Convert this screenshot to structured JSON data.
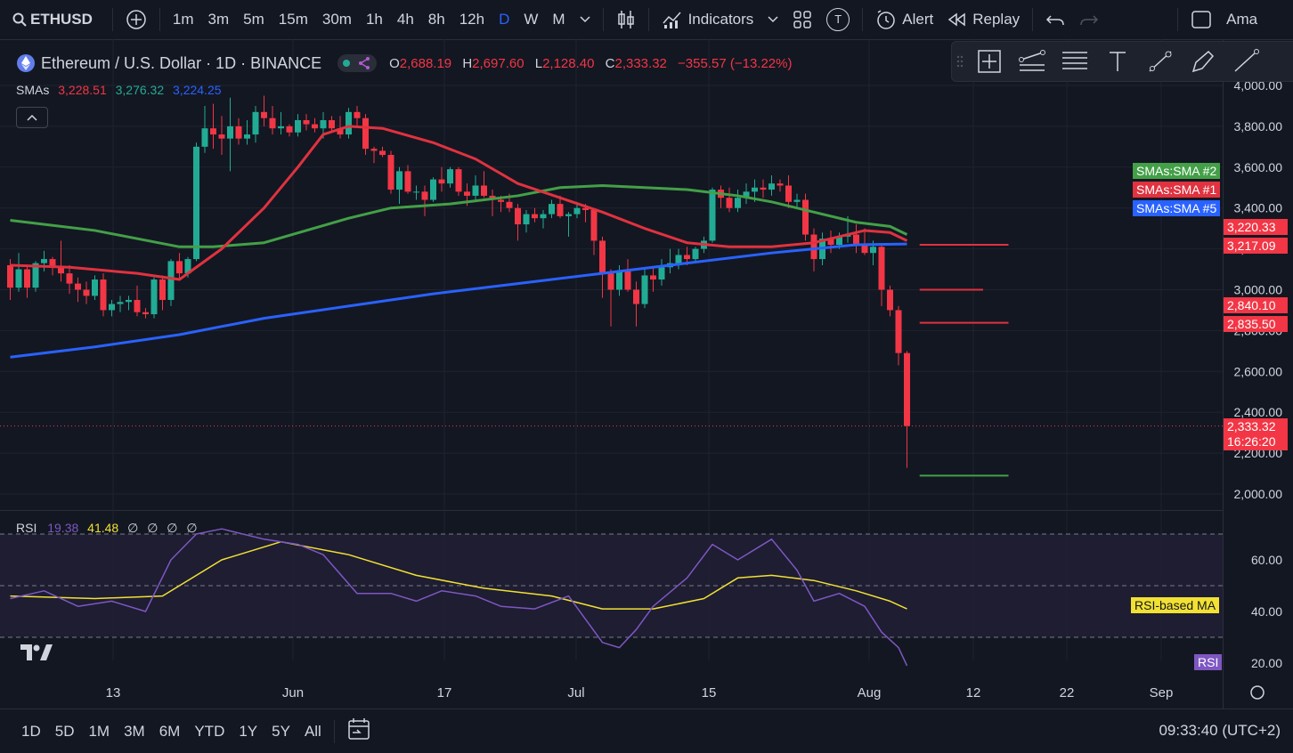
{
  "toolbar": {
    "symbol": "ETHUSD",
    "intervals": [
      "1m",
      "3m",
      "5m",
      "15m",
      "30m",
      "1h",
      "4h",
      "8h",
      "12h",
      "D",
      "W",
      "M"
    ],
    "active_interval": "D",
    "indicators_label": "Indicators",
    "alert_label": "Alert",
    "replay_label": "Replay",
    "t_badge": "T",
    "cut_label": "Ama"
  },
  "legend": {
    "title": "Ethereum / U.S. Dollar · 1D · BINANCE",
    "o_label": "O",
    "o_value": "2,688.19",
    "h_label": "H",
    "h_value": "2,697.60",
    "l_label": "L",
    "l_value": "2,128.40",
    "c_label": "C",
    "c_value": "2,333.32",
    "change": "−355.57 (−13.22%)",
    "smas_label": "SMAs",
    "sma1_value": "3,228.51",
    "sma2_value": "3,276.32",
    "sma5_value": "3,224.25"
  },
  "rsi_legend": {
    "label": "RSI",
    "rsi_value": "19.38",
    "ma_value": "41.48",
    "empty1": "∅",
    "empty2": "∅",
    "empty3": "∅",
    "empty4": "∅"
  },
  "badges": {
    "sma2": "SMAs:SMA #2",
    "sma1": "SMAs:SMA #1",
    "sma5": "SMAs:SMA #5",
    "p1": "3,220.33",
    "p2": "3,217.09",
    "p3": "2,840.10",
    "p4": "2,835.50",
    "last_price": "2,333.32",
    "countdown": "16:26:20",
    "rsi_ma": "RSI-based MA",
    "rsi": "RSI"
  },
  "bottom": {
    "ranges": [
      "1D",
      "5D",
      "1M",
      "3M",
      "6M",
      "YTD",
      "1Y",
      "5Y",
      "All"
    ],
    "clock": "09:33:40 (UTC+2)"
  },
  "colors": {
    "up": "#22ab94",
    "down": "#f23645",
    "sma1": "#e0323f",
    "sma2": "#43a047",
    "sma5": "#2962ff",
    "rsi": "#7e57c2",
    "rsi_ma": "#f2e132"
  },
  "chart_data": {
    "type": "candlestick",
    "price_axis_ticks": [
      "4,000.00",
      "3,800.00",
      "3,600.00",
      "3,400.00",
      "3,200.00",
      "3,000.00",
      "2,800.00",
      "2,600.00",
      "2,400.00",
      "2,200.00",
      "2,000.00"
    ],
    "price_axis_values": [
      4000,
      3800,
      3600,
      3400,
      3200,
      3000,
      2800,
      2600,
      2400,
      2200,
      2000
    ],
    "rsi_axis_ticks": [
      "60.00",
      "40.00",
      "20.00"
    ],
    "rsi_axis_values": [
      60,
      40,
      20
    ],
    "time_labels": [
      "13",
      "Jun",
      "17",
      "Jul",
      "15",
      "Aug",
      "12",
      "22",
      "Sep"
    ],
    "candles": [
      [
        3120,
        3150,
        2950,
        3010
      ],
      [
        3010,
        3180,
        2990,
        3100
      ],
      [
        3100,
        3120,
        2960,
        3010
      ],
      [
        3010,
        3140,
        2990,
        3130
      ],
      [
        3130,
        3190,
        3090,
        3150
      ],
      [
        3150,
        3160,
        3070,
        3110
      ],
      [
        3110,
        3240,
        3040,
        3080
      ],
      [
        3080,
        3120,
        2980,
        3030
      ],
      [
        3030,
        3060,
        2940,
        3000
      ],
      [
        3000,
        3040,
        2930,
        2970
      ],
      [
        2970,
        3070,
        2950,
        3050
      ],
      [
        3050,
        3080,
        2870,
        2900
      ],
      [
        2900,
        2950,
        2870,
        2930
      ],
      [
        2930,
        2970,
        2890,
        2940
      ],
      [
        2940,
        2970,
        2900,
        2950
      ],
      [
        2950,
        3020,
        2870,
        2890
      ],
      [
        2890,
        2910,
        2860,
        2880
      ],
      [
        2880,
        3060,
        2860,
        3050
      ],
      [
        3050,
        3070,
        2900,
        2950
      ],
      [
        2950,
        3150,
        2920,
        3140
      ],
      [
        3140,
        3180,
        3050,
        3080
      ],
      [
        3080,
        3160,
        3060,
        3150
      ],
      [
        3150,
        3720,
        3140,
        3700
      ],
      [
        3700,
        3900,
        3670,
        3790
      ],
      [
        3790,
        3910,
        3690,
        3760
      ],
      [
        3760,
        3850,
        3660,
        3740
      ],
      [
        3740,
        3940,
        3580,
        3800
      ],
      [
        3800,
        3840,
        3710,
        3740
      ],
      [
        3740,
        3830,
        3710,
        3760
      ],
      [
        3760,
        3900,
        3720,
        3870
      ],
      [
        3870,
        3950,
        3800,
        3840
      ],
      [
        3840,
        3900,
        3760,
        3790
      ],
      [
        3790,
        3870,
        3760,
        3800
      ],
      [
        3800,
        3810,
        3750,
        3770
      ],
      [
        3770,
        3860,
        3750,
        3830
      ],
      [
        3830,
        3860,
        3780,
        3810
      ],
      [
        3810,
        3840,
        3770,
        3790
      ],
      [
        3790,
        3870,
        3740,
        3830
      ],
      [
        3830,
        3850,
        3770,
        3790
      ],
      [
        3790,
        3850,
        3740,
        3760
      ],
      [
        3760,
        3890,
        3740,
        3870
      ],
      [
        3870,
        3900,
        3800,
        3840
      ],
      [
        3840,
        3860,
        3660,
        3690
      ],
      [
        3690,
        3700,
        3620,
        3680
      ],
      [
        3680,
        3700,
        3650,
        3660
      ],
      [
        3660,
        3680,
        3470,
        3490
      ],
      [
        3490,
        3600,
        3420,
        3580
      ],
      [
        3580,
        3610,
        3470,
        3480
      ],
      [
        3480,
        3510,
        3440,
        3480
      ],
      [
        3480,
        3510,
        3360,
        3440
      ],
      [
        3440,
        3550,
        3430,
        3540
      ],
      [
        3540,
        3600,
        3480,
        3520
      ],
      [
        3520,
        3600,
        3500,
        3590
      ],
      [
        3590,
        3600,
        3460,
        3480
      ],
      [
        3480,
        3520,
        3410,
        3460
      ],
      [
        3460,
        3560,
        3440,
        3510
      ],
      [
        3510,
        3580,
        3450,
        3460
      ],
      [
        3460,
        3490,
        3360,
        3440
      ],
      [
        3440,
        3460,
        3380,
        3430
      ],
      [
        3430,
        3470,
        3380,
        3400
      ],
      [
        3400,
        3420,
        3240,
        3320
      ],
      [
        3320,
        3390,
        3280,
        3370
      ],
      [
        3370,
        3400,
        3330,
        3350
      ],
      [
        3350,
        3390,
        3300,
        3370
      ],
      [
        3370,
        3440,
        3350,
        3420
      ],
      [
        3420,
        3460,
        3350,
        3360
      ],
      [
        3360,
        3380,
        3260,
        3370
      ],
      [
        3370,
        3430,
        3350,
        3400
      ],
      [
        3400,
        3420,
        3330,
        3390
      ],
      [
        3390,
        3400,
        3170,
        3240
      ],
      [
        3240,
        3260,
        2960,
        3080
      ],
      [
        3080,
        3100,
        2820,
        3000
      ],
      [
        3000,
        3120,
        2970,
        3090
      ],
      [
        3090,
        3150,
        2990,
        3000
      ],
      [
        3000,
        3040,
        2820,
        2930
      ],
      [
        2930,
        3100,
        2910,
        3070
      ],
      [
        3070,
        3110,
        2990,
        3050
      ],
      [
        3050,
        3150,
        3020,
        3110
      ],
      [
        3110,
        3200,
        3080,
        3130
      ],
      [
        3130,
        3200,
        3100,
        3170
      ],
      [
        3170,
        3210,
        3120,
        3150
      ],
      [
        3150,
        3210,
        3140,
        3200
      ],
      [
        3200,
        3260,
        3180,
        3240
      ],
      [
        3240,
        3500,
        3230,
        3490
      ],
      [
        3490,
        3510,
        3400,
        3450
      ],
      [
        3450,
        3500,
        3380,
        3400
      ],
      [
        3400,
        3490,
        3380,
        3450
      ],
      [
        3450,
        3520,
        3420,
        3480
      ],
      [
        3480,
        3540,
        3430,
        3500
      ],
      [
        3500,
        3540,
        3450,
        3490
      ],
      [
        3490,
        3560,
        3460,
        3520
      ],
      [
        3520,
        3540,
        3480,
        3510
      ],
      [
        3510,
        3560,
        3400,
        3430
      ],
      [
        3430,
        3470,
        3400,
        3440
      ],
      [
        3440,
        3470,
        3240,
        3270
      ],
      [
        3270,
        3300,
        3090,
        3150
      ],
      [
        3150,
        3280,
        3120,
        3250
      ],
      [
        3250,
        3290,
        3180,
        3220
      ],
      [
        3220,
        3280,
        3200,
        3260
      ],
      [
        3260,
        3360,
        3230,
        3270
      ],
      [
        3270,
        3320,
        3180,
        3220
      ],
      [
        3220,
        3300,
        3170,
        3180
      ],
      [
        3180,
        3240,
        3120,
        3210
      ],
      [
        3210,
        3220,
        2920,
        3000
      ],
      [
        3000,
        3020,
        2870,
        2900
      ],
      [
        2900,
        2920,
        2630,
        2690
      ],
      [
        2690,
        2700,
        2128,
        2333
      ]
    ],
    "sma1": [
      [
        0,
        3120
      ],
      [
        7,
        3110
      ],
      [
        15,
        3080
      ],
      [
        20,
        3050
      ],
      [
        25,
        3200
      ],
      [
        30,
        3400
      ],
      [
        34,
        3600
      ],
      [
        37,
        3760
      ],
      [
        40,
        3800
      ],
      [
        44,
        3790
      ],
      [
        50,
        3720
      ],
      [
        55,
        3640
      ],
      [
        60,
        3520
      ],
      [
        65,
        3450
      ],
      [
        70,
        3380
      ],
      [
        75,
        3300
      ],
      [
        80,
        3230
      ],
      [
        85,
        3210
      ],
      [
        90,
        3210
      ],
      [
        95,
        3230
      ],
      [
        98,
        3260
      ],
      [
        101,
        3290
      ],
      [
        104,
        3280
      ],
      [
        106,
        3240
      ]
    ],
    "sma2": [
      [
        0,
        3340
      ],
      [
        10,
        3290
      ],
      [
        20,
        3210
      ],
      [
        24,
        3210
      ],
      [
        30,
        3230
      ],
      [
        35,
        3290
      ],
      [
        40,
        3350
      ],
      [
        45,
        3400
      ],
      [
        52,
        3420
      ],
      [
        60,
        3460
      ],
      [
        65,
        3500
      ],
      [
        70,
        3510
      ],
      [
        75,
        3500
      ],
      [
        80,
        3490
      ],
      [
        86,
        3460
      ],
      [
        90,
        3430
      ],
      [
        95,
        3380
      ],
      [
        100,
        3330
      ],
      [
        104,
        3310
      ],
      [
        106,
        3270
      ]
    ],
    "sma5": [
      [
        0,
        2670
      ],
      [
        10,
        2720
      ],
      [
        20,
        2780
      ],
      [
        30,
        2860
      ],
      [
        40,
        2920
      ],
      [
        50,
        2980
      ],
      [
        60,
        3030
      ],
      [
        70,
        3080
      ],
      [
        80,
        3130
      ],
      [
        90,
        3180
      ],
      [
        100,
        3220
      ],
      [
        106,
        3224
      ]
    ],
    "rsi": [
      [
        0,
        45
      ],
      [
        4,
        48
      ],
      [
        8,
        42
      ],
      [
        12,
        44
      ],
      [
        16,
        40
      ],
      [
        19,
        60
      ],
      [
        22,
        70
      ],
      [
        25,
        72
      ],
      [
        30,
        68
      ],
      [
        34,
        66
      ],
      [
        37,
        62
      ],
      [
        41,
        47
      ],
      [
        45,
        47
      ],
      [
        48,
        44
      ],
      [
        51,
        48
      ],
      [
        55,
        46
      ],
      [
        58,
        42
      ],
      [
        62,
        41
      ],
      [
        66,
        46
      ],
      [
        70,
        28
      ],
      [
        72,
        26
      ],
      [
        74,
        33
      ],
      [
        76,
        42
      ],
      [
        80,
        53
      ],
      [
        83,
        66
      ],
      [
        86,
        60
      ],
      [
        90,
        68
      ],
      [
        93,
        56
      ],
      [
        95,
        44
      ],
      [
        98,
        47
      ],
      [
        101,
        42
      ],
      [
        103,
        32
      ],
      [
        105,
        26
      ],
      [
        106,
        19
      ]
    ],
    "rsi_ma": [
      [
        0,
        46
      ],
      [
        10,
        45
      ],
      [
        18,
        46
      ],
      [
        25,
        60
      ],
      [
        32,
        67
      ],
      [
        40,
        62
      ],
      [
        48,
        54
      ],
      [
        56,
        49
      ],
      [
        64,
        46
      ],
      [
        70,
        41
      ],
      [
        76,
        41
      ],
      [
        82,
        45
      ],
      [
        86,
        53
      ],
      [
        90,
        54
      ],
      [
        95,
        52
      ],
      [
        100,
        48
      ],
      [
        104,
        44
      ],
      [
        106,
        41
      ]
    ],
    "h_rays": [
      {
        "y": 3220,
        "x0": 107.5,
        "x1": 118,
        "color": "sma1"
      },
      {
        "y": 3000,
        "x0": 107.5,
        "x1": 115,
        "color": "sma1"
      },
      {
        "y": 2838,
        "x0": 107.5,
        "x1": 118,
        "color": "sma1"
      },
      {
        "y": 2090,
        "x0": 107.5,
        "x1": 118,
        "color": "sma2"
      }
    ]
  }
}
